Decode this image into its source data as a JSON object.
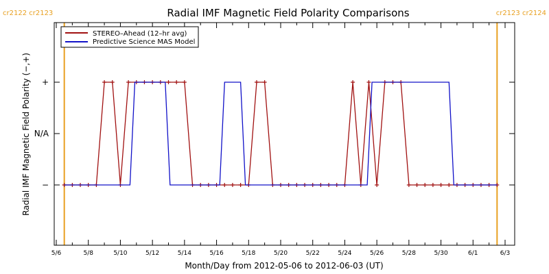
{
  "chart_data": {
    "type": "line",
    "title": "Radial IMF Magnetic Field Polarity Comparisons",
    "xlabel": "Month/Day from 2012-05-06 to 2012-06-03 (UT)",
    "ylabel": "Radial IMF Magnetic Field Polarity (−,+)",
    "x_range_days": [
      0,
      28
    ],
    "y_ticks": [
      {
        "value": 1,
        "label": "+"
      },
      {
        "value": 0,
        "label": "N/A"
      },
      {
        "value": -1,
        "label": "−"
      }
    ],
    "ylim": [
      -2,
      2
    ],
    "x_ticks": [
      {
        "day": 0,
        "label": "5/6"
      },
      {
        "day": 2,
        "label": "5/8"
      },
      {
        "day": 4,
        "label": "5/10"
      },
      {
        "day": 6,
        "label": "5/12"
      },
      {
        "day": 8,
        "label": "5/14"
      },
      {
        "day": 10,
        "label": "5/16"
      },
      {
        "day": 12,
        "label": "5/18"
      },
      {
        "day": 14,
        "label": "5/20"
      },
      {
        "day": 16,
        "label": "5/22"
      },
      {
        "day": 18,
        "label": "5/24"
      },
      {
        "day": 20,
        "label": "5/26"
      },
      {
        "day": 22,
        "label": "5/28"
      },
      {
        "day": 24,
        "label": "5/30"
      },
      {
        "day": 26,
        "label": "6/1"
      },
      {
        "day": 28,
        "label": "6/3"
      }
    ],
    "carrington_markers": [
      {
        "day": 0.5,
        "label": "cr2122 cr2123",
        "color": "#e8a020"
      },
      {
        "day": 27.5,
        "label": "cr2123 cr2124",
        "color": "#e8a020"
      }
    ],
    "legend": {
      "placement": "top-left"
    },
    "series": [
      {
        "name": "STEREO–Ahead (12–hr avg)",
        "color": "#a01010",
        "markers": true,
        "x": [
          0.5,
          1.0,
          1.5,
          2.0,
          2.5,
          3.0,
          3.5,
          4.0,
          4.5,
          5.0,
          5.5,
          6.0,
          6.5,
          7.0,
          7.5,
          8.0,
          8.5,
          9.0,
          9.5,
          10.0,
          10.5,
          11.0,
          11.5,
          12.0,
          12.5,
          13.0,
          13.5,
          14.0,
          14.5,
          15.0,
          15.5,
          16.0,
          16.5,
          17.0,
          17.5,
          18.0,
          18.5,
          19.0,
          19.5,
          20.0,
          20.5,
          21.0,
          21.5,
          22.0,
          22.5,
          23.0,
          23.5,
          24.0,
          24.5,
          25.0,
          25.5,
          26.0,
          26.5,
          27.0,
          27.5
        ],
        "values": [
          -1,
          -1,
          -1,
          -1,
          -1,
          1,
          1,
          -1,
          1,
          1,
          1,
          1,
          1,
          1,
          1,
          1,
          -1,
          -1,
          -1,
          -1,
          -1,
          -1,
          -1,
          -1,
          1,
          1,
          -1,
          -1,
          -1,
          -1,
          -1,
          -1,
          -1,
          -1,
          -1,
          -1,
          1,
          -1,
          1,
          -1,
          1,
          1,
          1,
          -1,
          -1,
          -1,
          -1,
          -1,
          -1,
          -1,
          -1,
          -1,
          -1,
          -1,
          -1
        ]
      },
      {
        "name": "Predictive Science MAS Model",
        "color": "#1010c8",
        "markers": false,
        "x": [
          0.5,
          4.6,
          4.9,
          6.8,
          7.1,
          10.2,
          10.5,
          11.5,
          11.8,
          19.4,
          19.7,
          24.5,
          24.8,
          27.5
        ],
        "values": [
          -1,
          -1,
          1,
          1,
          -1,
          -1,
          1,
          1,
          -1,
          -1,
          1,
          1,
          -1,
          -1
        ]
      }
    ]
  }
}
